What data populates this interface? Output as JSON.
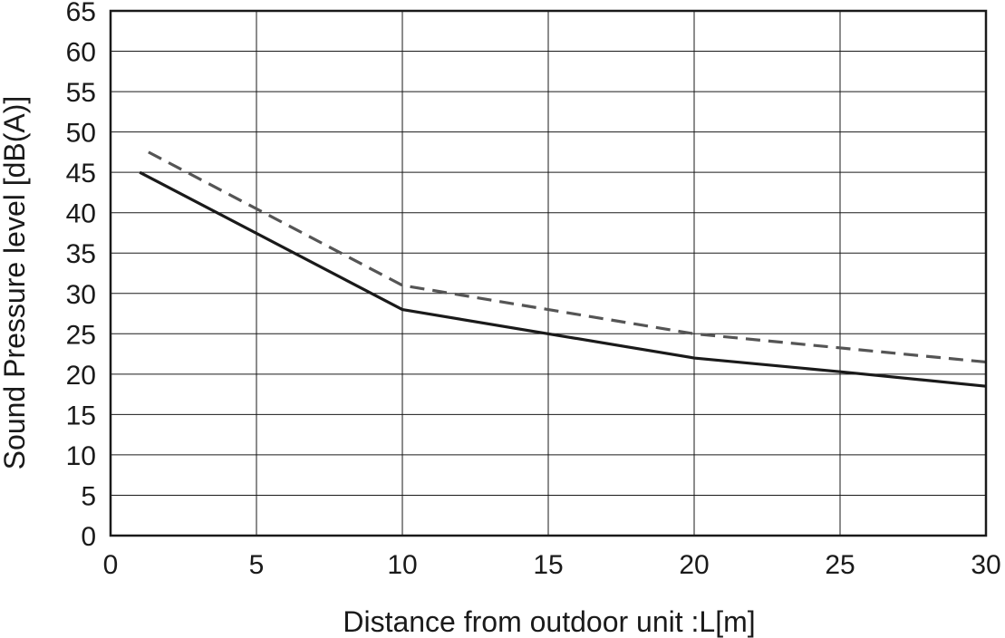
{
  "chart_data": {
    "type": "line",
    "title": "",
    "xlabel": "Distance from outdoor unit  :L[m]",
    "ylabel": "Sound Pressure level [dB(A)]",
    "xlim": [
      0,
      30
    ],
    "ylim": [
      0,
      65
    ],
    "xticks": [
      0,
      5,
      10,
      15,
      20,
      25,
      30
    ],
    "yticks": [
      0,
      5,
      10,
      15,
      20,
      25,
      30,
      35,
      40,
      45,
      50,
      55,
      60,
      65
    ],
    "grid": true,
    "legend": "none",
    "series": [
      {
        "style": "solid",
        "color": "#1a1a1a",
        "x": [
          1,
          10,
          20,
          25,
          30
        ],
        "y": [
          45,
          28,
          22,
          20.3,
          18.5
        ]
      },
      {
        "style": "dashed",
        "color": "#555555",
        "x": [
          1.3,
          10,
          20,
          30
        ],
        "y": [
          47.5,
          31,
          25,
          21.5
        ]
      }
    ]
  }
}
